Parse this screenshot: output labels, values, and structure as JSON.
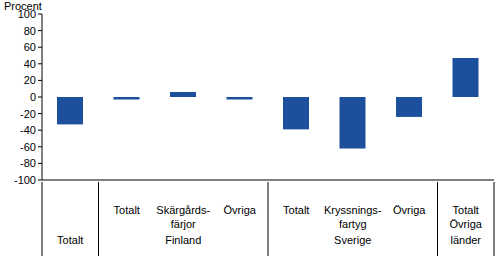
{
  "chart_data": {
    "type": "bar",
    "y_label": "Procent",
    "categories": [
      null,
      "Totalt",
      "Skärgårds-\nfärjor",
      "Övriga",
      "Totalt",
      "Kryssnings-\nfartyg",
      "Övriga",
      "Totalt"
    ],
    "groups": [
      "Totalt",
      "Finland",
      "Finland",
      "Finland",
      "Sverige",
      "Sverige",
      "Sverige",
      "Övriga\nländer"
    ],
    "values": [
      -33,
      -3,
      6,
      -3,
      -39,
      -62,
      -24,
      47
    ],
    "color": "#1c4f9c",
    "ylim": [
      -100,
      100
    ],
    "yticks": [
      -100,
      -80,
      -60,
      -40,
      -20,
      0,
      20,
      40,
      60,
      80,
      100
    ],
    "grid": false
  }
}
